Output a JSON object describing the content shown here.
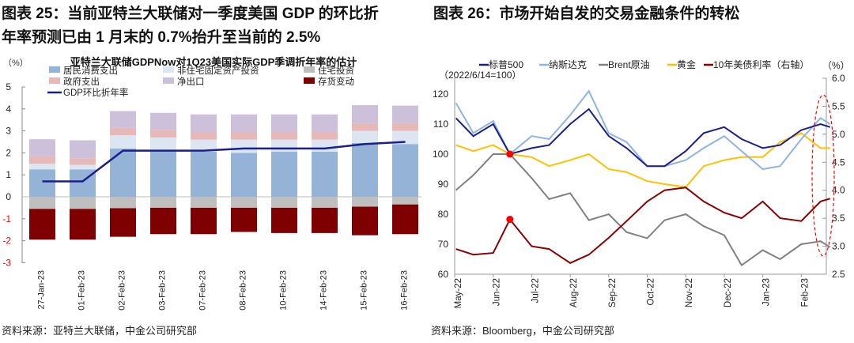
{
  "left": {
    "heading_line1": "图表 25：当前亚特兰大联储对一季度美国 GDP 的环比折",
    "heading_line2": "年率预测已由 1 月末的 0.7%抬升至当前的 2.5%",
    "footer": "资料来源：亚特兰大联储，中金公司研究部"
  },
  "right": {
    "heading": "图表 26：市场开始自发的交易金融条件的转松",
    "footer": "资料来源：Bloomberg，中金公司研究部"
  },
  "chart_data": [
    {
      "type": "bar",
      "stacked": true,
      "title": "亚特兰大联储GDPNow对1Q23美国实际GDP季调折年率的估计",
      "ylabel": "（%）",
      "ylim": [
        -3,
        5
      ],
      "yticks": [
        "5",
        "4",
        "3",
        "2",
        "1",
        "0",
        "-1",
        "-2",
        "-3"
      ],
      "grid": false,
      "legend": "top",
      "categories": [
        "27-Jan-23",
        "01-Feb-23",
        "02-Feb-23",
        "03-Feb-23",
        "07-Feb-23",
        "08-Feb-23",
        "10-Feb-23",
        "14-Feb-23",
        "15-Feb-23",
        "16-Feb-23"
      ],
      "series": [
        {
          "name": "居民消费支出",
          "color": "#95b3d7",
          "values": [
            1.25,
            1.25,
            2.2,
            2.1,
            2.05,
            2.0,
            2.05,
            2.05,
            2.45,
            2.4
          ]
        },
        {
          "name": "非住宅固定资产投资",
          "color": "#dce6f2",
          "values": [
            0.25,
            0.2,
            0.6,
            0.6,
            0.55,
            0.6,
            0.55,
            0.55,
            0.55,
            0.6
          ]
        },
        {
          "name": "政府支出",
          "color": "#e6b9b8",
          "values": [
            0.35,
            0.3,
            0.35,
            0.35,
            0.35,
            0.35,
            0.35,
            0.35,
            0.35,
            0.35
          ]
        },
        {
          "name": "净出口",
          "color": "#ccc0da",
          "values": [
            0.77,
            0.82,
            0.75,
            0.77,
            0.8,
            0.8,
            0.8,
            0.8,
            0.82,
            0.8
          ]
        },
        {
          "name": "住宅投资",
          "color": "#bfbfbf",
          "values": [
            -0.55,
            -0.55,
            -0.52,
            -0.5,
            -0.5,
            -0.5,
            -0.5,
            -0.5,
            -0.45,
            -0.35
          ]
        },
        {
          "name": "存货变动",
          "color": "#7f0000",
          "values": [
            -1.4,
            -1.4,
            -1.3,
            -1.2,
            -1.2,
            -1.1,
            -1.15,
            -1.15,
            -1.3,
            -1.35
          ]
        },
        {
          "name": "GDP环比折年率",
          "type": "line",
          "color": "#1a1f8c",
          "values": [
            0.7,
            0.7,
            2.1,
            2.1,
            2.1,
            2.2,
            2.2,
            2.2,
            2.4,
            2.5
          ]
        }
      ]
    },
    {
      "type": "line",
      "ylabel": "（2022/6/14=100）",
      "y2label": "（%）",
      "ylim": [
        60,
        120
      ],
      "y2lim": [
        2.5,
        6.0
      ],
      "yticks": [
        "120",
        "110",
        "100",
        "90",
        "80",
        "70",
        "60"
      ],
      "y2ticks": [
        "6.0",
        "5.5",
        "5.0",
        "4.5",
        "4.0",
        "3.5",
        "3.0",
        "2.5"
      ],
      "xticks": [
        "May-22",
        "Jun-22",
        "Jul-22",
        "Aug-22",
        "Sep-22",
        "Oct-22",
        "Nov-22",
        "Dec-22",
        "Jan-23",
        "Feb-23"
      ],
      "legend": "top",
      "x": [
        "2022-05-02",
        "2022-05-16",
        "2022-06-01",
        "2022-06-14",
        "2022-07-01",
        "2022-07-15",
        "2022-08-01",
        "2022-08-16",
        "2022-09-01",
        "2022-09-15",
        "2022-10-01",
        "2022-10-15",
        "2022-11-01",
        "2022-11-15",
        "2022-12-01",
        "2022-12-15",
        "2023-01-01",
        "2023-01-15",
        "2023-02-01",
        "2023-02-15",
        "2023-02-22"
      ],
      "series": [
        {
          "name": "标普500",
          "color": "#1a1f8c",
          "axis": "left",
          "values": [
            112,
            106,
            110,
            100,
            102,
            103,
            110,
            115,
            106,
            102,
            96,
            96,
            101,
            107,
            109,
            105,
            102,
            103,
            108,
            110,
            109
          ]
        },
        {
          "name": "纳斯达克",
          "color": "#8eb4e3",
          "axis": "left",
          "values": [
            117,
            107,
            111,
            100,
            106,
            105,
            113,
            121,
            107,
            104,
            96,
            96,
            98,
            102,
            106,
            101,
            95,
            96,
            105,
            112,
            110
          ]
        },
        {
          "name": "Brent原油",
          "color": "#808080",
          "axis": "left",
          "values": [
            88,
            93,
            100,
            100,
            92,
            85,
            87,
            78,
            80,
            74,
            72,
            78,
            80,
            76,
            73,
            63,
            68,
            65,
            70,
            71,
            69
          ]
        },
        {
          "name": "黄金",
          "color": "#ffc000",
          "axis": "left",
          "values": [
            103,
            101,
            103,
            100,
            99,
            96,
            98,
            100,
            95,
            94,
            91,
            90,
            89,
            96,
            98,
            99,
            99,
            104,
            107,
            102,
            102
          ]
        },
        {
          "name": "10年美债利率（右轴）",
          "color": "#8b0000",
          "axis": "right",
          "values": [
            2.95,
            2.85,
            2.88,
            3.48,
            3.0,
            2.95,
            2.7,
            2.85,
            3.15,
            3.45,
            3.8,
            4.0,
            4.05,
            3.8,
            3.6,
            3.5,
            3.8,
            3.5,
            3.45,
            3.8,
            3.85
          ]
        }
      ],
      "markers": [
        {
          "x": "2022-06-14",
          "series": "标普500",
          "value": 100,
          "color": "#ff0000"
        },
        {
          "x": "2022-06-14",
          "series": "10年美债利率（右轴）",
          "value": 3.48,
          "color": "#ff0000"
        }
      ],
      "annotation": {
        "shape": "dashed-ellipse",
        "color": "#ff0000",
        "x": "2023-02-15"
      }
    }
  ]
}
